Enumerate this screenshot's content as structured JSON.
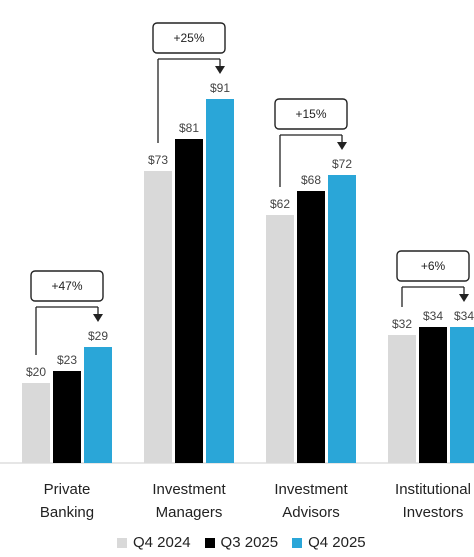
{
  "chart_data": {
    "type": "bar",
    "categories": [
      [
        "Private",
        "Banking"
      ],
      [
        "Investment",
        "Managers"
      ],
      [
        "Investment",
        "Advisors"
      ],
      [
        "Institutional",
        "Investors"
      ]
    ],
    "series": [
      {
        "name": "Q4 2024",
        "color": "#d9d9d9",
        "values": [
          20,
          73,
          62,
          32
        ]
      },
      {
        "name": "Q3 2025",
        "color": "#000000",
        "values": [
          23,
          81,
          68,
          34
        ]
      },
      {
        "name": "Q4 2025",
        "color": "#2aa6d8",
        "values": [
          29,
          91,
          72,
          34
        ]
      }
    ],
    "value_labels": [
      [
        "$20",
        "$23",
        "$29"
      ],
      [
        "$73",
        "$81",
        "$91"
      ],
      [
        "$62",
        "$68",
        "$72"
      ],
      [
        "$32",
        "$34",
        "$34"
      ]
    ],
    "growth_labels": [
      "+47%",
      "+25%",
      "+15%",
      "+6%"
    ],
    "legend_position": "bottom",
    "grid": false,
    "ylim": [
      0,
      100
    ]
  }
}
